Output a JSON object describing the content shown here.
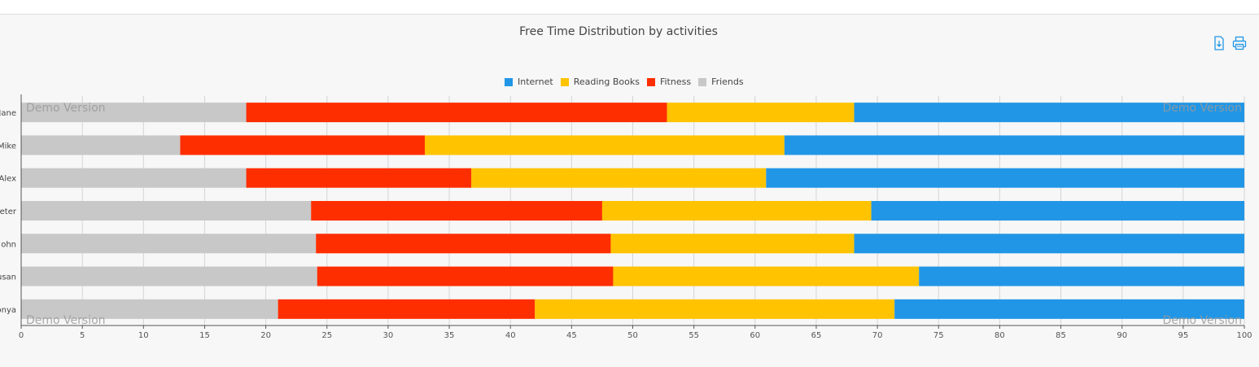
{
  "chart_data": {
    "type": "bar",
    "orientation": "horizontal",
    "stacked": true,
    "percent": true,
    "title": "Free Time Distribution by activities",
    "categories": [
      "Jane",
      "Mike",
      "Alex",
      "Peter",
      "John",
      "Susan",
      "Sonya"
    ],
    "category_labels": [
      "Jane",
      "Mike",
      "Alex",
      "eter",
      "ohn",
      "usan",
      "onya"
    ],
    "series": [
      {
        "name": "Friends",
        "color": "#c8c8c8",
        "values": [
          18.4,
          13.0,
          18.4,
          23.7,
          24.1,
          24.2,
          21.0
        ]
      },
      {
        "name": "Fitness",
        "color": "#ff2e00",
        "values": [
          34.4,
          20.0,
          18.4,
          23.8,
          24.1,
          24.2,
          21.0
        ]
      },
      {
        "name": "Reading Books",
        "color": "#ffc300",
        "values": [
          15.3,
          29.4,
          24.1,
          22.0,
          19.9,
          25.0,
          29.4
        ]
      },
      {
        "name": "Internet",
        "color": "#2196e6",
        "values": [
          31.9,
          37.6,
          39.1,
          30.5,
          31.9,
          26.6,
          28.6
        ]
      }
    ],
    "legend_order": [
      "Internet",
      "Reading Books",
      "Fitness",
      "Friends"
    ],
    "xlim": [
      0,
      100
    ],
    "xticks": [
      0,
      5,
      10,
      15,
      20,
      25,
      30,
      35,
      40,
      45,
      50,
      55,
      60,
      65,
      70,
      75,
      80,
      85,
      90,
      95,
      100
    ],
    "grid": true,
    "legend_position": "top-center"
  },
  "watermark": "Demo Version",
  "toolbar": {
    "download_icon": "download-icon",
    "print_icon": "print-icon",
    "accent_color": "#2196e6"
  }
}
